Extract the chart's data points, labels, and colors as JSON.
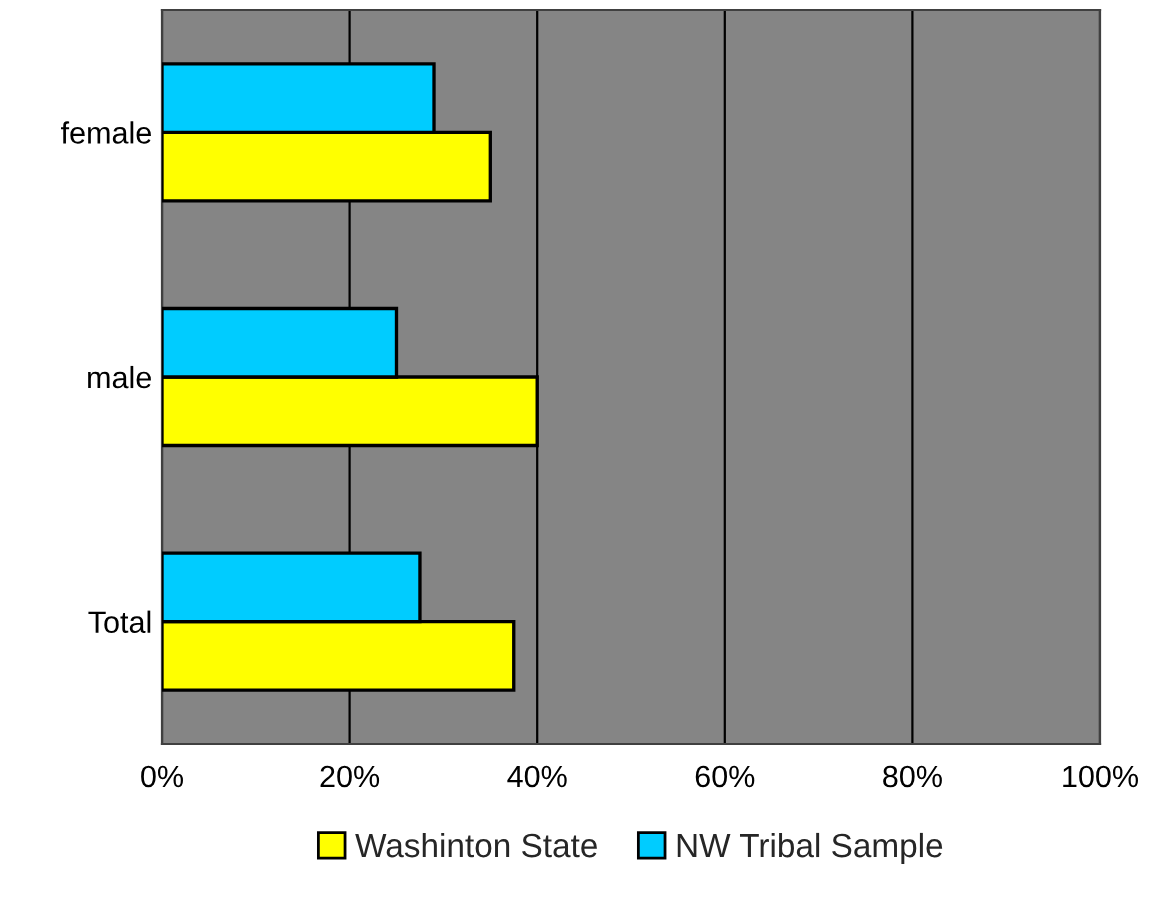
{
  "chart_data": {
    "type": "bar",
    "orientation": "horizontal",
    "categories": [
      "female",
      "male",
      "Total"
    ],
    "series": [
      {
        "name": "Washinton State",
        "color": "#ffff00",
        "values": [
          35,
          40,
          37.5
        ]
      },
      {
        "name": "NW Tribal Sample",
        "color": "#00ccff",
        "values": [
          29,
          25,
          27.5
        ]
      }
    ],
    "xlim": [
      0,
      100
    ],
    "xticks": [
      {
        "value": 0,
        "label": "0%"
      },
      {
        "value": 20,
        "label": "20%"
      },
      {
        "value": 40,
        "label": "40%"
      },
      {
        "value": 60,
        "label": "60%"
      },
      {
        "value": 80,
        "label": "80%"
      },
      {
        "value": 100,
        "label": "100%"
      }
    ],
    "grid": "x",
    "legend": "bottom"
  }
}
